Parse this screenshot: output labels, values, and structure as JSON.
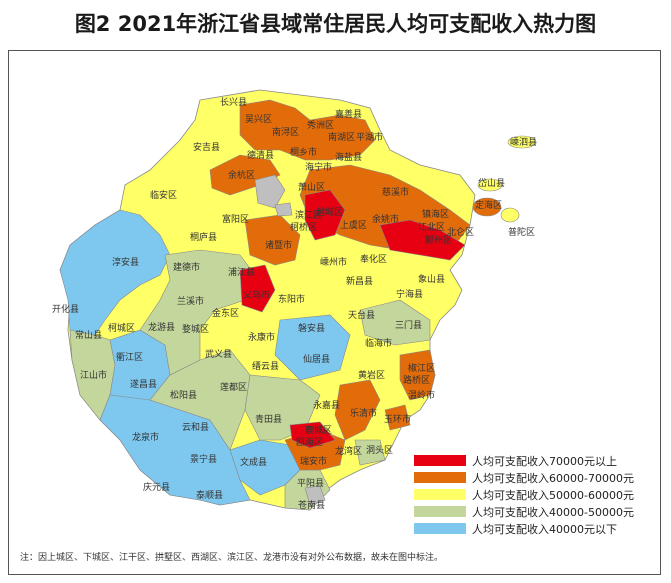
{
  "title": "图2  2021年浙江省县域常住居民人均可支配收入热力图",
  "legend": [
    {
      "label": "人均可支配收入70000元以上",
      "color": "#e60012"
    },
    {
      "label": "人均可支配收入60000-70000元",
      "color": "#e36c0a"
    },
    {
      "label": "人均可支配收入50000-60000元",
      "color": "#ffff66"
    },
    {
      "label": "人均可支配收入40000-50000元",
      "color": "#c3d69b"
    },
    {
      "label": "人均可支配收入40000元以下",
      "color": "#7ec8ef"
    }
  ],
  "note": "注：因上城区、下城区、江干区、拱墅区、西湖区、滨江区、龙港市没有对外公布数据，故未在图中标注。",
  "labels": [
    "长兴县",
    "嘉善县",
    "吴兴区",
    "秀洲区",
    "南浔区",
    "南湖区",
    "平湖市",
    "嵊泗县",
    "安吉县",
    "德清县",
    "桐乡市",
    "海盐县",
    "岱山县",
    "余杭区",
    "海宁市",
    "临安区",
    "萧山区",
    "慈溪市",
    "定海区",
    "镇海区",
    "富阳区",
    "滨江区",
    "越城区",
    "余姚市",
    "北仑区",
    "普陀区",
    "桐庐县",
    "柯桥区",
    "上虞区",
    "江北区",
    "鄞州区",
    "淳安县",
    "诸暨市",
    "嵊州市",
    "奉化区",
    "建德市",
    "浦江县",
    "义乌市",
    "东阳市",
    "新昌县",
    "象山县",
    "宁海县",
    "开化县",
    "兰溪市",
    "金东区",
    "天台县",
    "三门县",
    "常山县",
    "柯城区",
    "龙游县",
    "婺城区",
    "永康市",
    "磐安县",
    "临海市",
    "衢江区",
    "武义县",
    "仙居县",
    "椒江区",
    "江山市",
    "遂昌县",
    "缙云县",
    "路桥区",
    "松阳县",
    "莲都区",
    "黄岩区",
    "温岭市",
    "龙泉市",
    "云和县",
    "青田县",
    "永嘉县",
    "乐清市",
    "玉环市",
    "景宁县",
    "文成县",
    "瓯海区",
    "鹿城区",
    "龙湾区",
    "瑞安市",
    "洞头区",
    "庆元县",
    "泰顺县",
    "平阳县",
    "苍南县"
  ]
}
